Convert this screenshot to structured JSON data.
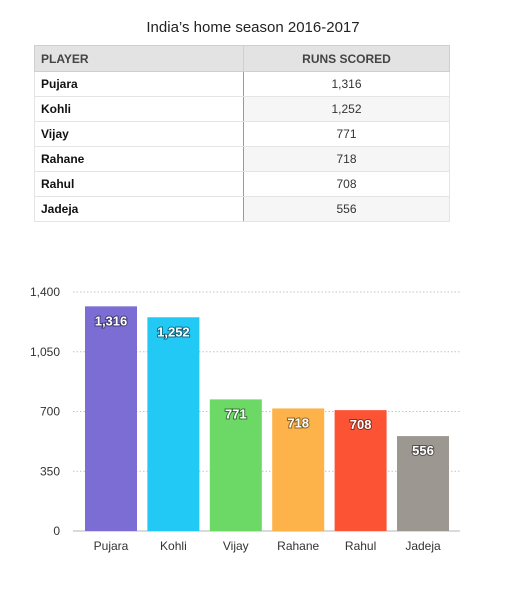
{
  "title": "India’s home season 2016-2017",
  "table": {
    "headers": [
      "PLAYER",
      "RUNS SCORED"
    ],
    "rows": [
      [
        "Pujara",
        "1,316"
      ],
      [
        "Kohli",
        "1,252"
      ],
      [
        "Vijay",
        "771"
      ],
      [
        "Rahane",
        "718"
      ],
      [
        "Rahul",
        "708"
      ],
      [
        "Jadeja",
        "556"
      ]
    ]
  },
  "chart_data": {
    "type": "bar",
    "title": "",
    "xlabel": "",
    "ylabel": "",
    "categories": [
      "Pujara",
      "Kohli",
      "Vijay",
      "Rahane",
      "Rahul",
      "Jadeja"
    ],
    "values": [
      1316,
      1252,
      771,
      718,
      708,
      556
    ],
    "value_labels": [
      "1,316",
      "1,252",
      "771",
      "718",
      "708",
      "556"
    ],
    "colors": [
      "#7b6dd3",
      "#22c9f4",
      "#6cd866",
      "#fdb24a",
      "#fd5335",
      "#9c9891"
    ],
    "ylim": [
      0,
      1400
    ],
    "yticks": [
      0,
      350,
      700,
      1050,
      1400
    ],
    "ytick_labels": [
      "0",
      "350",
      "700",
      "1,050",
      "1,400"
    ],
    "grid": true,
    "legend": "none"
  }
}
